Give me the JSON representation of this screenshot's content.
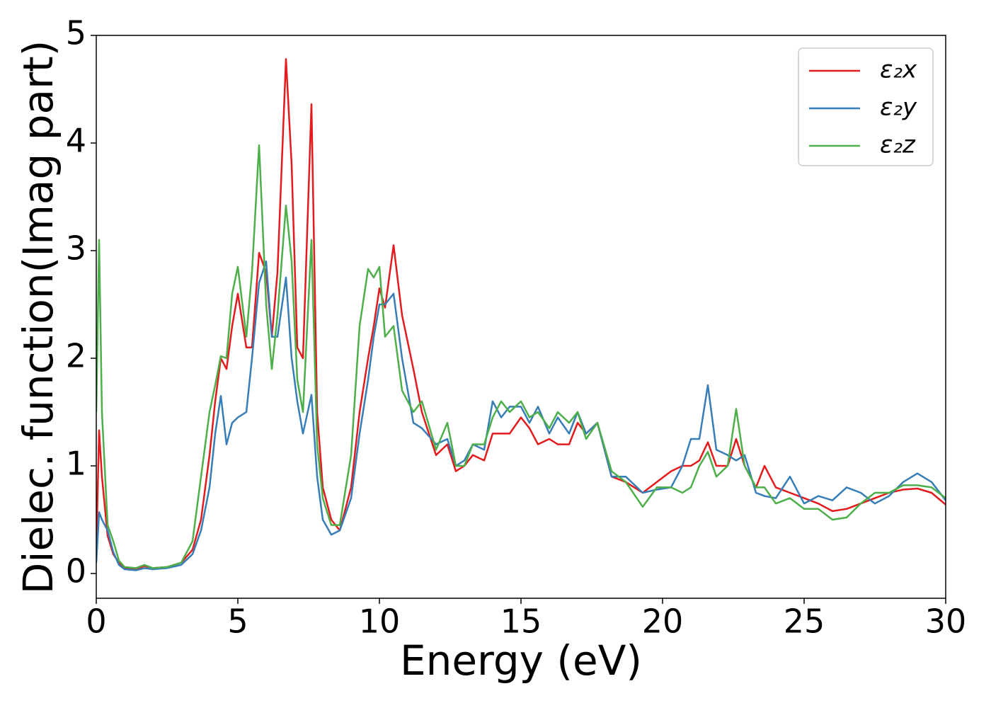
{
  "chart_data": {
    "type": "line",
    "xlabel": "Energy (eV)",
    "ylabel": "Dielec. function(Imag part)",
    "xlim": [
      0,
      30
    ],
    "ylim": [
      -0.23,
      5
    ],
    "xticks": [
      0,
      5,
      10,
      15,
      20,
      25,
      30
    ],
    "yticks": [
      0,
      1,
      2,
      3,
      4,
      5
    ],
    "legend": "upper right",
    "x": [
      0,
      0.1,
      0.2,
      0.4,
      0.6,
      0.8,
      1.0,
      1.4,
      1.7,
      2.0,
      2.5,
      3.0,
      3.4,
      3.7,
      4.0,
      4.2,
      4.4,
      4.6,
      4.8,
      5.0,
      5.3,
      5.5,
      5.75,
      6.0,
      6.2,
      6.4,
      6.7,
      6.9,
      7.1,
      7.3,
      7.6,
      7.8,
      8.0,
      8.3,
      8.6,
      9.0,
      9.3,
      9.6,
      9.8,
      10.0,
      10.2,
      10.5,
      10.8,
      11.2,
      11.5,
      12.0,
      12.4,
      12.7,
      13.0,
      13.3,
      13.7,
      14.0,
      14.3,
      14.6,
      15.0,
      15.3,
      15.6,
      16.0,
      16.3,
      16.7,
      17.0,
      17.3,
      17.7,
      18.2,
      18.7,
      19.3,
      19.8,
      20.3,
      20.7,
      21.0,
      21.3,
      21.6,
      21.9,
      22.3,
      22.6,
      22.9,
      23.3,
      23.6,
      24.0,
      24.5,
      25.0,
      25.5,
      26.0,
      26.5,
      27.0,
      27.5,
      28.0,
      28.5,
      29.0,
      29.5,
      30.0
    ],
    "series": [
      {
        "name": "ε₂x",
        "color": "#e41a1c",
        "values": [
          0.2,
          1.33,
          0.9,
          0.35,
          0.18,
          0.1,
          0.05,
          0.04,
          0.07,
          0.05,
          0.06,
          0.1,
          0.22,
          0.5,
          1.1,
          1.6,
          2.0,
          1.9,
          2.3,
          2.6,
          2.1,
          2.1,
          2.98,
          2.8,
          2.2,
          2.8,
          4.78,
          3.8,
          2.1,
          2.0,
          4.36,
          1.5,
          0.8,
          0.5,
          0.4,
          0.8,
          1.5,
          2.0,
          2.3,
          2.65,
          2.47,
          3.05,
          2.4,
          1.9,
          1.5,
          1.1,
          1.2,
          0.95,
          1.0,
          1.1,
          1.05,
          1.3,
          1.3,
          1.3,
          1.45,
          1.35,
          1.2,
          1.25,
          1.2,
          1.2,
          1.4,
          1.3,
          1.4,
          0.9,
          0.85,
          0.75,
          0.85,
          0.95,
          1.0,
          1.0,
          1.05,
          1.22,
          1.0,
          1.0,
          1.25,
          1.0,
          0.8,
          1.0,
          0.8,
          0.75,
          0.7,
          0.65,
          0.58,
          0.6,
          0.65,
          0.7,
          0.75,
          0.78,
          0.79,
          0.75,
          0.64
        ]
      },
      {
        "name": "ε₂y",
        "color": "#377eb8",
        "values": [
          0.1,
          0.57,
          0.5,
          0.4,
          0.2,
          0.08,
          0.04,
          0.03,
          0.05,
          0.04,
          0.05,
          0.08,
          0.18,
          0.4,
          0.8,
          1.3,
          1.65,
          1.2,
          1.4,
          1.45,
          1.5,
          2.0,
          2.7,
          2.9,
          2.2,
          2.2,
          2.75,
          2.0,
          1.6,
          1.3,
          1.66,
          0.9,
          0.5,
          0.36,
          0.4,
          0.7,
          1.3,
          1.8,
          2.2,
          2.5,
          2.5,
          2.6,
          2.0,
          1.4,
          1.35,
          1.2,
          1.25,
          1.0,
          1.05,
          1.2,
          1.15,
          1.6,
          1.45,
          1.55,
          1.55,
          1.4,
          1.55,
          1.3,
          1.45,
          1.3,
          1.5,
          1.3,
          1.4,
          0.9,
          0.9,
          0.75,
          0.78,
          0.8,
          1.0,
          1.25,
          1.25,
          1.75,
          1.15,
          1.1,
          1.05,
          1.1,
          0.75,
          0.72,
          0.7,
          0.9,
          0.65,
          0.72,
          0.68,
          0.8,
          0.75,
          0.65,
          0.72,
          0.85,
          0.93,
          0.85,
          0.68
        ]
      },
      {
        "name": "ε₂z",
        "color": "#4daf4a",
        "values": [
          1.5,
          3.1,
          1.5,
          0.45,
          0.3,
          0.12,
          0.06,
          0.05,
          0.08,
          0.05,
          0.06,
          0.1,
          0.3,
          0.9,
          1.5,
          1.75,
          2.02,
          2.0,
          2.6,
          2.85,
          2.2,
          2.8,
          3.98,
          2.5,
          1.9,
          2.4,
          3.42,
          2.9,
          1.8,
          1.5,
          3.1,
          1.2,
          0.7,
          0.45,
          0.45,
          1.1,
          2.3,
          2.83,
          2.75,
          2.85,
          2.2,
          2.3,
          1.7,
          1.5,
          1.6,
          1.15,
          1.4,
          1.0,
          1.0,
          1.2,
          1.2,
          1.45,
          1.6,
          1.5,
          1.6,
          1.45,
          1.5,
          1.35,
          1.5,
          1.4,
          1.5,
          1.25,
          1.4,
          0.95,
          0.85,
          0.62,
          0.8,
          0.8,
          0.75,
          0.8,
          1.0,
          1.13,
          0.9,
          1.0,
          1.53,
          1.0,
          0.8,
          0.8,
          0.65,
          0.7,
          0.6,
          0.6,
          0.5,
          0.52,
          0.65,
          0.75,
          0.75,
          0.82,
          0.82,
          0.8,
          0.7
        ]
      }
    ]
  }
}
